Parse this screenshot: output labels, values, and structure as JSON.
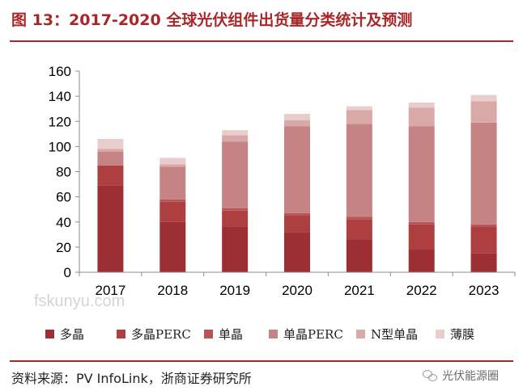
{
  "header": {
    "title": "图 13：2017-2020 全球光伏组件出货量分类统计及预测"
  },
  "chart_data": {
    "type": "bar",
    "stacked": true,
    "categories": [
      "2017",
      "2018",
      "2019",
      "2020",
      "2021",
      "2022",
      "2023"
    ],
    "ylim": [
      0,
      160
    ],
    "yticks": [
      "0",
      "20",
      "40",
      "60",
      "80",
      "100",
      "120",
      "140",
      "160"
    ],
    "grid": false,
    "legend_position": "bottom",
    "series": [
      {
        "name": "多晶",
        "color": "#9c2f33",
        "values": [
          69,
          40,
          36,
          32,
          26,
          18,
          15
        ]
      },
      {
        "name": "多晶PERC",
        "color": "#ad3f40",
        "values": [
          16,
          16,
          13,
          13,
          16,
          20,
          21
        ]
      },
      {
        "name": "单晶",
        "color": "#b95356",
        "values": [
          0,
          2,
          2,
          2,
          2,
          2,
          2
        ]
      },
      {
        "name": "单晶PERC",
        "color": "#c58483",
        "values": [
          11,
          26,
          53,
          69,
          74,
          76,
          81
        ]
      },
      {
        "name": "N型单晶",
        "color": "#d9a9a8",
        "values": [
          2,
          2,
          5,
          5,
          11,
          15,
          17
        ]
      },
      {
        "name": "薄膜",
        "color": "#e8cdcc",
        "values": [
          8,
          5,
          4,
          5,
          3,
          4,
          5
        ]
      }
    ]
  },
  "watermark": "fskunyu.com",
  "footer": {
    "source": "资料来源：PV InfoLink，浙商证券研究所",
    "brand": "光伏能源圈"
  }
}
